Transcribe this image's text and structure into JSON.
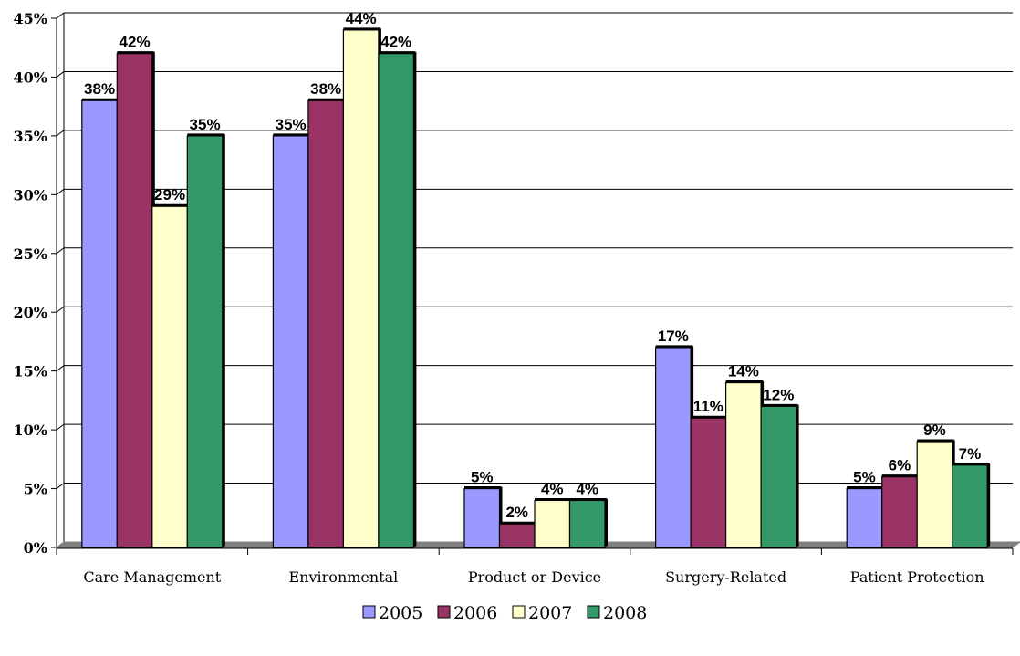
{
  "chart_data": {
    "type": "bar",
    "categories": [
      "Care Management",
      "Environmental",
      "Product or Device",
      "Surgery-Related",
      "Patient Protection"
    ],
    "series": [
      {
        "name": "2005",
        "color": "#9999FF",
        "values": [
          38,
          35,
          5,
          17,
          5
        ]
      },
      {
        "name": "2006",
        "color": "#993366",
        "values": [
          42,
          38,
          2,
          11,
          6
        ]
      },
      {
        "name": "2007",
        "color": "#FFFFCC",
        "values": [
          29,
          44,
          4,
          14,
          9
        ]
      },
      {
        "name": "2008",
        "color": "#339966",
        "values": [
          35,
          42,
          4,
          12,
          7
        ]
      }
    ],
    "ylim": [
      0,
      45
    ],
    "y_ticks": [
      "0%",
      "5%",
      "10%",
      "15%",
      "20%",
      "25%",
      "30%",
      "35%",
      "40%",
      "45%"
    ],
    "value_suffix": "%",
    "grid": true,
    "legend_position": "bottom"
  }
}
